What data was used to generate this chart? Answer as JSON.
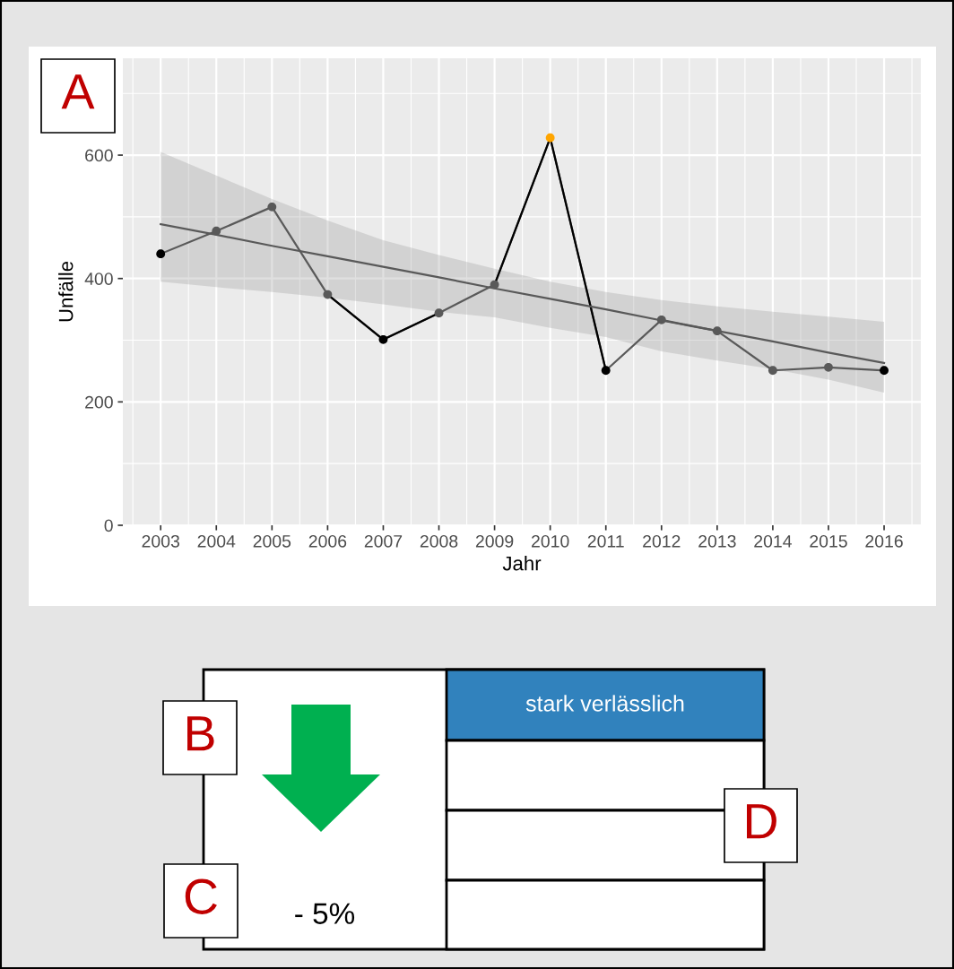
{
  "chart_data": [
    {
      "type": "line",
      "xlabel": "Jahr",
      "ylabel": "Unfälle",
      "annotations": [
        "A"
      ],
      "x": [
        2003,
        2004,
        2005,
        2006,
        2007,
        2008,
        2009,
        2010,
        2011,
        2012,
        2013,
        2014,
        2015,
        2016
      ],
      "series": [
        {
          "type": "line",
          "color": "#595959",
          "marker": "circle",
          "values": [
            440,
            477,
            516,
            374,
            301,
            344,
            390,
            628,
            251,
            333,
            315,
            251,
            256,
            251
          ],
          "colors": [
            "#000000",
            "#595959",
            "#595959",
            "#595959",
            "#000000",
            "#595959",
            "#595959",
            "#ffa500",
            "#000000",
            "#595959",
            "#595959",
            "#595959",
            "#595959",
            "#000000"
          ]
        },
        {
          "type": "line",
          "color": "#000000",
          "marker": "none",
          "values": [
            null,
            null,
            null,
            374,
            301,
            344,
            null,
            null,
            null,
            null,
            null,
            null,
            null,
            null
          ]
        },
        {
          "type": "line",
          "color": "#000000",
          "marker": "none",
          "values": [
            null,
            null,
            null,
            null,
            null,
            null,
            390,
            628,
            251,
            null,
            null,
            null,
            null,
            null
          ]
        },
        {
          "type": "line",
          "color": "#595959",
          "marker": "none",
          "values": [
            488,
            471,
            453,
            436,
            419,
            402,
            384,
            367,
            350,
            332,
            315,
            298,
            280,
            263
          ],
          "lower": [
            395,
            386,
            378,
            369,
            358,
            346,
            337,
            320,
            305,
            282,
            267,
            253,
            236,
            215
          ],
          "upper": [
            605,
            567,
            529,
            494,
            462,
            438,
            416,
            395,
            378,
            365,
            355,
            346,
            338,
            330
          ]
        }
      ],
      "xlim": [
        2002.32,
        2016.66
      ],
      "xticks": [
        2003,
        2004,
        2005,
        2006,
        2007,
        2008,
        2009,
        2010,
        2011,
        2012,
        2013,
        2014,
        2015,
        2016
      ],
      "ylim": [
        0,
        757
      ],
      "yticks": [
        0,
        200,
        400,
        600
      ],
      "grid": true,
      "legend": false
    },
    {
      "type": "other",
      "annotations": [
        "B",
        "C",
        "D",
        "- 5%",
        "stark verlässlich"
      ]
    }
  ]
}
